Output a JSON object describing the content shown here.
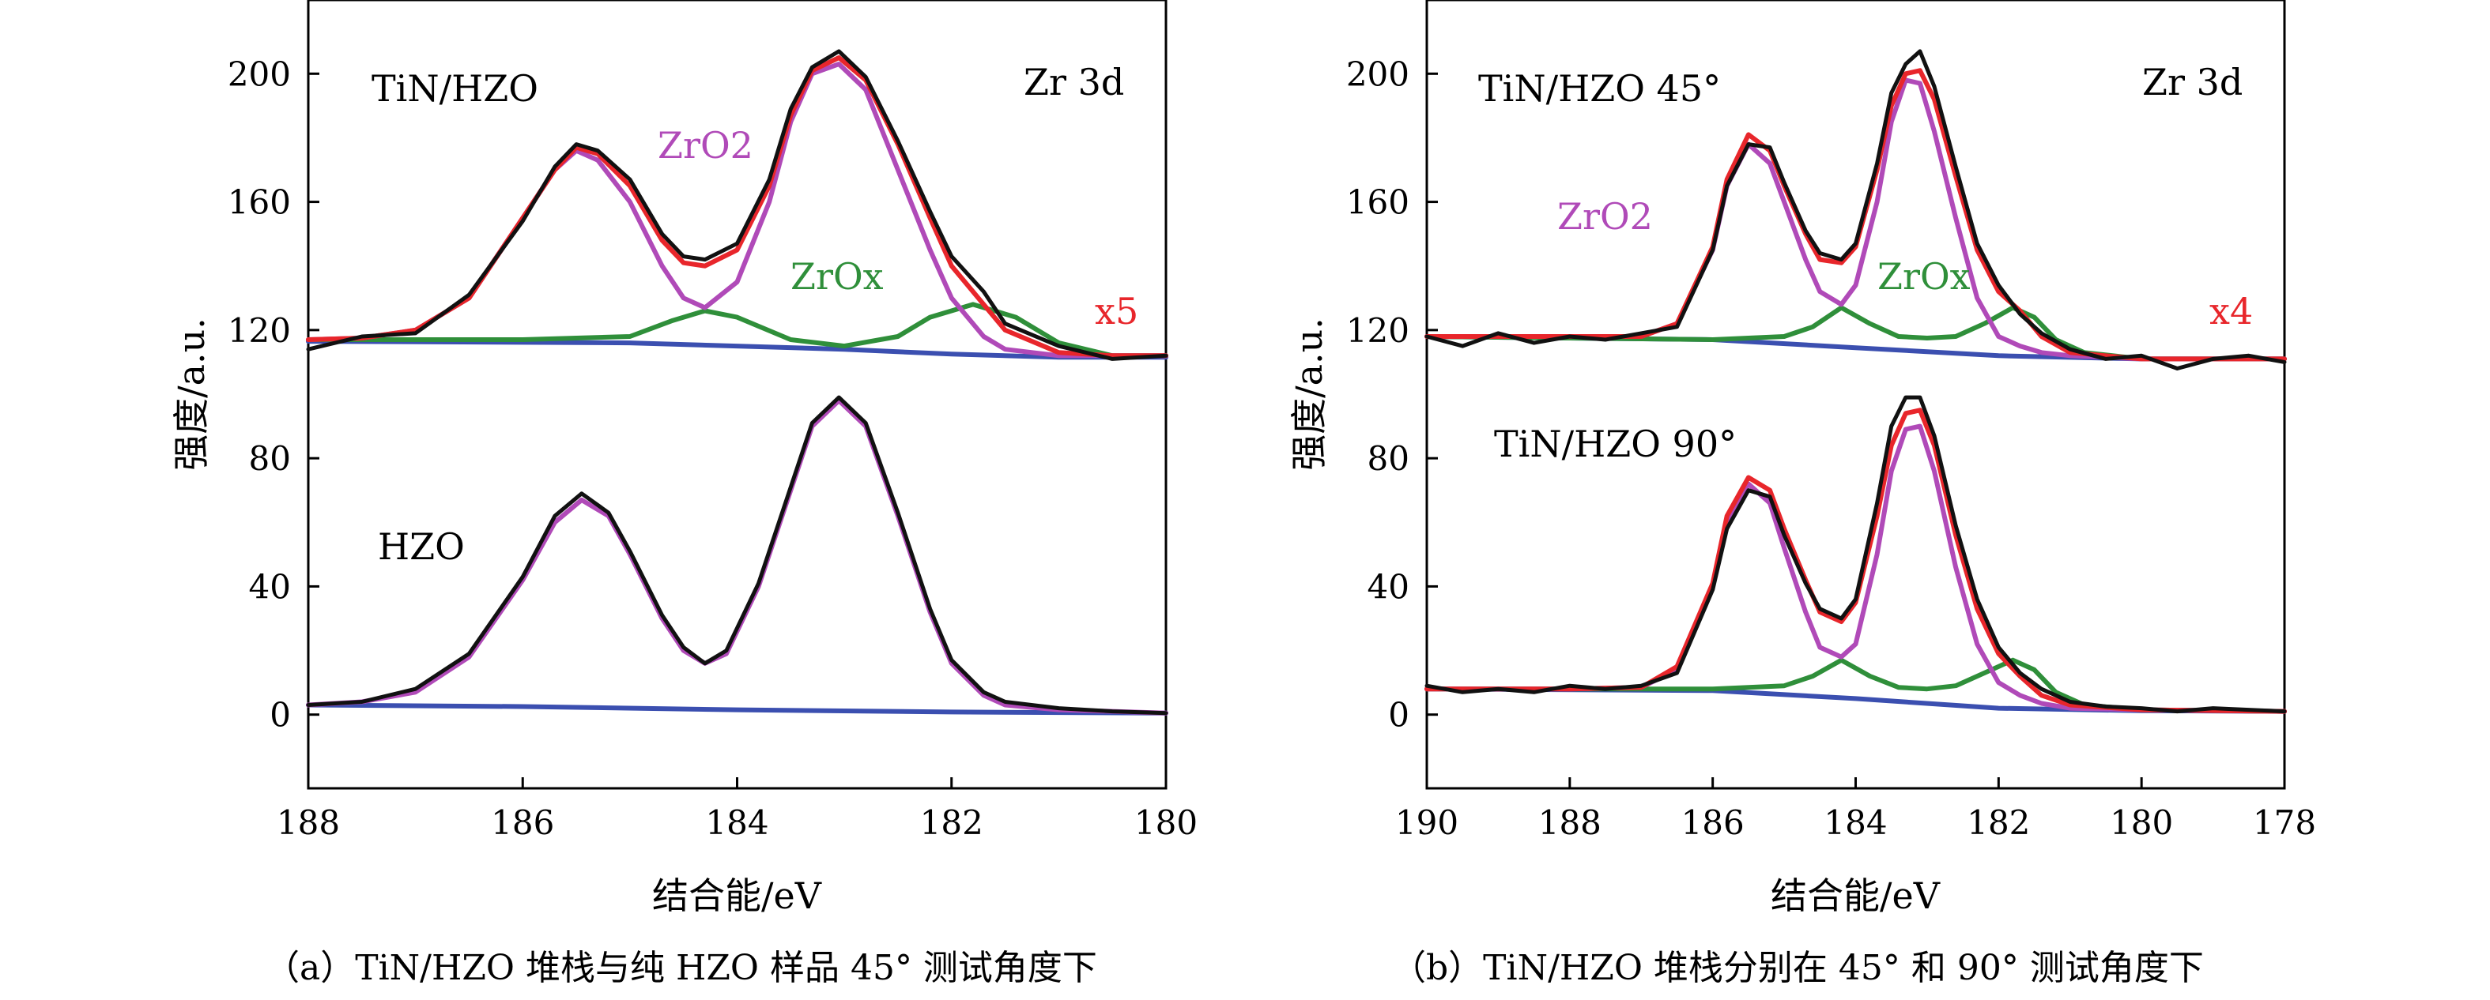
{
  "figure": {
    "caption_a": "（a）TiN/HZO 堆栈与纯 HZO 样品 45° 测试角度下",
    "caption_b": "（b）TiN/HZO 堆栈分别在 45° 和 90° 测试角度下"
  },
  "chart_data": [
    {
      "type": "line",
      "panel": "a",
      "xlabel": "结合能/eV",
      "ylabel": "强度/a.u.",
      "xlim": [
        188,
        180
      ],
      "ylim": [
        -23,
        223
      ],
      "x_reversed": true,
      "xticks": [
        "188",
        "186",
        "184",
        "182",
        "180"
      ],
      "yticks": [
        "0",
        "40",
        "80",
        "120",
        "160",
        "200"
      ],
      "annotations": {
        "top_sample": "TiN/HZO",
        "bottom_sample": "HZO",
        "element": "Zr 3d",
        "zro2_label": "ZrO2",
        "zrox_label": "ZrOx",
        "scale_factor": "x5"
      },
      "colors": {
        "measured": "#111111",
        "envelope": "#e8262b",
        "zro2": "#b04ab8",
        "zrox": "#2f8f3a",
        "background": "#3b4fb0"
      },
      "series": [
        {
          "role": "TiN/HZO ZrO2 fit",
          "x": [
            188,
            187.5,
            187,
            186.5,
            186,
            185.7,
            185.5,
            185.3,
            185,
            184.7,
            184.5,
            184.3,
            184,
            183.7,
            183.5,
            183.3,
            183.05,
            182.8,
            182.5,
            182.2,
            182,
            181.7,
            181.5,
            181,
            180.5,
            180
          ],
          "y": [
            117,
            117.5,
            120,
            130,
            155,
            170,
            176,
            173,
            160,
            140,
            130,
            127,
            135,
            160,
            185,
            200,
            203,
            195,
            170,
            145,
            130,
            118,
            114,
            112,
            112,
            112
          ]
        },
        {
          "role": "TiN/HZO ZrOx fit",
          "x": [
            188,
            187,
            186,
            185,
            184.6,
            184.3,
            184,
            183.5,
            183,
            182.5,
            182.2,
            181.8,
            181.4,
            181,
            180.5,
            180
          ],
          "y": [
            117,
            117,
            117,
            118,
            123,
            126,
            124,
            117,
            115,
            118,
            124,
            128,
            124,
            116,
            112,
            112
          ]
        },
        {
          "role": "TiN/HZO envelope",
          "x": [
            188,
            187.5,
            187,
            186.5,
            186,
            185.7,
            185.5,
            185.3,
            185,
            184.7,
            184.5,
            184.3,
            184,
            183.7,
            183.5,
            183.3,
            183.05,
            182.8,
            182.5,
            182.2,
            182,
            181.7,
            181.5,
            181,
            180.5,
            180
          ],
          "y": [
            117,
            117.5,
            120,
            130,
            155,
            170,
            177,
            175,
            165,
            148,
            141,
            140,
            145,
            165,
            187,
            201,
            205,
            198,
            178,
            155,
            140,
            128,
            120,
            113,
            112,
            112
          ]
        },
        {
          "role": "TiN/HZO measured",
          "x": [
            188,
            187.5,
            187,
            186.5,
            186,
            185.7,
            185.5,
            185.3,
            185,
            184.7,
            184.5,
            184.3,
            184,
            183.7,
            183.5,
            183.3,
            183.05,
            182.8,
            182.5,
            182.2,
            182,
            181.7,
            181.5,
            181,
            180.5,
            180
          ],
          "y": [
            114,
            118,
            119,
            131,
            154,
            171,
            178,
            176,
            167,
            150,
            143,
            142,
            147,
            167,
            189,
            202,
            207,
            199,
            179,
            157,
            143,
            132,
            122,
            115,
            111,
            112
          ]
        },
        {
          "role": "TiN/HZO background",
          "x": [
            188,
            185,
            183,
            182,
            181,
            180
          ],
          "y": [
            116.5,
            116,
            114,
            112.5,
            111.5,
            111.5
          ]
        },
        {
          "role": "HZO ZrO2 fit",
          "x": [
            188,
            187.5,
            187,
            186.5,
            186,
            185.7,
            185.45,
            185.2,
            185,
            184.7,
            184.5,
            184.3,
            184.1,
            183.8,
            183.5,
            183.3,
            183.05,
            182.8,
            182.5,
            182.2,
            182,
            181.7,
            181.5,
            181,
            180.5,
            180
          ],
          "y": [
            3,
            4,
            7,
            18,
            42,
            60,
            67,
            62,
            50,
            30,
            20,
            16,
            19,
            40,
            70,
            90,
            98,
            90,
            62,
            32,
            16,
            6,
            3,
            1.5,
            1,
            0.5
          ]
        },
        {
          "role": "HZO measured",
          "x": [
            188,
            187.5,
            187,
            186.5,
            186,
            185.7,
            185.45,
            185.2,
            185,
            184.7,
            184.5,
            184.3,
            184.1,
            183.8,
            183.5,
            183.3,
            183.05,
            182.8,
            182.5,
            182.2,
            182,
            181.7,
            181.5,
            181,
            180.5,
            180
          ],
          "y": [
            3,
            4,
            8,
            19,
            43,
            62,
            69,
            63,
            51,
            31,
            21,
            16,
            20,
            41,
            71,
            91,
            99,
            91,
            63,
            33,
            17,
            7,
            4,
            2,
            1,
            0.5
          ]
        },
        {
          "role": "HZO background",
          "x": [
            188,
            186,
            184,
            182,
            180
          ],
          "y": [
            3,
            2.5,
            1.5,
            0.8,
            0.5
          ]
        }
      ]
    },
    {
      "type": "line",
      "panel": "b",
      "xlabel": "结合能/eV",
      "ylabel": "强度/a.u.",
      "xlim": [
        190,
        178
      ],
      "ylim": [
        -23,
        223
      ],
      "x_reversed": true,
      "xticks": [
        "190",
        "188",
        "186",
        "184",
        "182",
        "180",
        "178"
      ],
      "yticks": [
        "0",
        "40",
        "80",
        "120",
        "160",
        "200"
      ],
      "annotations": {
        "top_sample": "TiN/HZO 45°",
        "bottom_sample": "TiN/HZO 90°",
        "element": "Zr 3d",
        "zro2_label": "ZrO2",
        "zrox_label": "ZrOx",
        "scale_factor": "x4"
      },
      "colors": {
        "measured": "#111111",
        "envelope": "#e8262b",
        "zro2": "#b04ab8",
        "zrox": "#2f8f3a",
        "background": "#3b4fb0"
      },
      "series": [
        {
          "role": "45° ZrO2 fit",
          "x": [
            190,
            188,
            187,
            186.5,
            186,
            185.8,
            185.5,
            185.2,
            185,
            184.7,
            184.5,
            184.2,
            184,
            183.7,
            183.5,
            183.3,
            183.1,
            182.9,
            182.6,
            182.3,
            182,
            181.7,
            181.4,
            181,
            180,
            178
          ],
          "y": [
            118,
            118,
            118,
            122,
            145,
            165,
            178,
            172,
            160,
            142,
            132,
            128,
            134,
            160,
            185,
            198,
            197,
            182,
            155,
            130,
            118,
            115,
            113,
            112,
            111,
            111
          ]
        },
        {
          "role": "45° ZrOx fit",
          "x": [
            190,
            188,
            186,
            185,
            184.6,
            184.2,
            183.8,
            183.4,
            183,
            182.6,
            182.2,
            181.8,
            181.5,
            181.2,
            180.8,
            180,
            178
          ],
          "y": [
            118,
            117.5,
            117,
            118,
            121,
            127,
            122,
            118,
            117.5,
            118,
            122,
            127,
            124,
            117,
            113,
            111,
            111
          ]
        },
        {
          "role": "45° envelope",
          "x": [
            190,
            188,
            187,
            186.5,
            186,
            185.8,
            185.5,
            185.2,
            185,
            184.7,
            184.5,
            184.2,
            184,
            183.7,
            183.5,
            183.3,
            183.1,
            182.9,
            182.6,
            182.3,
            182,
            181.7,
            181.4,
            181,
            180,
            178
          ],
          "y": [
            118,
            118,
            118,
            122,
            146,
            167,
            181,
            176,
            165,
            150,
            142,
            141,
            146,
            170,
            190,
            200,
            201,
            192,
            168,
            145,
            132,
            126,
            118,
            113,
            111,
            111
          ]
        },
        {
          "role": "45° measured",
          "x": [
            190,
            189.5,
            189,
            188.5,
            188,
            187.5,
            187,
            186.5,
            186,
            185.8,
            185.5,
            185.2,
            185,
            184.7,
            184.5,
            184.2,
            184,
            183.7,
            183.5,
            183.3,
            183.1,
            182.9,
            182.6,
            182.3,
            182,
            181.7,
            181.4,
            181,
            180.5,
            180,
            179.5,
            179,
            178.5,
            178
          ],
          "y": [
            118,
            115,
            119,
            116,
            118,
            117,
            119,
            121,
            145,
            165,
            178,
            177,
            166,
            151,
            144,
            142,
            147,
            172,
            194,
            203,
            207,
            196,
            171,
            147,
            134,
            125,
            119,
            114,
            111,
            112,
            108,
            111,
            112,
            110
          ]
        },
        {
          "role": "45° background",
          "x": [
            190,
            186,
            184,
            182,
            180,
            178
          ],
          "y": [
            118,
            117,
            114.5,
            112,
            111,
            111
          ]
        },
        {
          "role": "90° ZrO2 fit",
          "x": [
            190,
            188,
            187,
            186.5,
            186,
            185.8,
            185.5,
            185.2,
            185,
            184.7,
            184.5,
            184.2,
            184,
            183.7,
            183.5,
            183.3,
            183.1,
            182.9,
            182.6,
            182.3,
            182,
            181.7,
            181.4,
            181,
            180,
            178
          ],
          "y": [
            8,
            8,
            8.5,
            14,
            40,
            60,
            72,
            66,
            52,
            32,
            21,
            18,
            22,
            50,
            76,
            89,
            90,
            76,
            46,
            22,
            10,
            6,
            3.5,
            2,
            1.5,
            1
          ]
        },
        {
          "role": "90° ZrOx fit",
          "x": [
            190,
            188,
            186,
            185,
            184.6,
            184.2,
            183.8,
            183.4,
            183,
            182.6,
            182.2,
            181.8,
            181.5,
            181.2,
            180.8,
            180,
            178
          ],
          "y": [
            8,
            8,
            8,
            9,
            12,
            17,
            12,
            8.5,
            8,
            9,
            13,
            17,
            14,
            7,
            3,
            1.5,
            1
          ]
        },
        {
          "role": "90° envelope",
          "x": [
            190,
            188,
            187,
            186.5,
            186,
            185.8,
            185.5,
            185.2,
            185,
            184.7,
            184.5,
            184.2,
            184,
            183.7,
            183.5,
            183.3,
            183.1,
            182.9,
            182.6,
            182.3,
            182,
            181.7,
            181.4,
            181,
            180,
            178
          ],
          "y": [
            8,
            8,
            8.5,
            15,
            41,
            62,
            74,
            70,
            58,
            42,
            32,
            29,
            35,
            62,
            84,
            94,
            95,
            84,
            56,
            33,
            19,
            12,
            6,
            3,
            1.5,
            1
          ]
        },
        {
          "role": "90° measured",
          "x": [
            190,
            189.5,
            189,
            188.5,
            188,
            187.5,
            187,
            186.5,
            186,
            185.8,
            185.5,
            185.2,
            185,
            184.7,
            184.5,
            184.2,
            184,
            183.7,
            183.5,
            183.3,
            183.1,
            182.9,
            182.6,
            182.3,
            182,
            181.7,
            181.4,
            181,
            180.5,
            180,
            179.5,
            179,
            178.5,
            178
          ],
          "y": [
            9,
            7,
            8,
            7,
            9,
            8,
            9,
            13,
            39,
            58,
            70,
            68,
            56,
            41,
            33,
            30,
            36,
            66,
            90,
            99,
            99,
            87,
            59,
            36,
            21,
            13,
            8,
            4,
            2.5,
            2,
            1,
            2,
            1.5,
            1
          ]
        },
        {
          "role": "90° background",
          "x": [
            190,
            186,
            184,
            182,
            180,
            178
          ],
          "y": [
            8,
            7.5,
            5,
            2,
            1.2,
            1
          ]
        }
      ]
    }
  ]
}
